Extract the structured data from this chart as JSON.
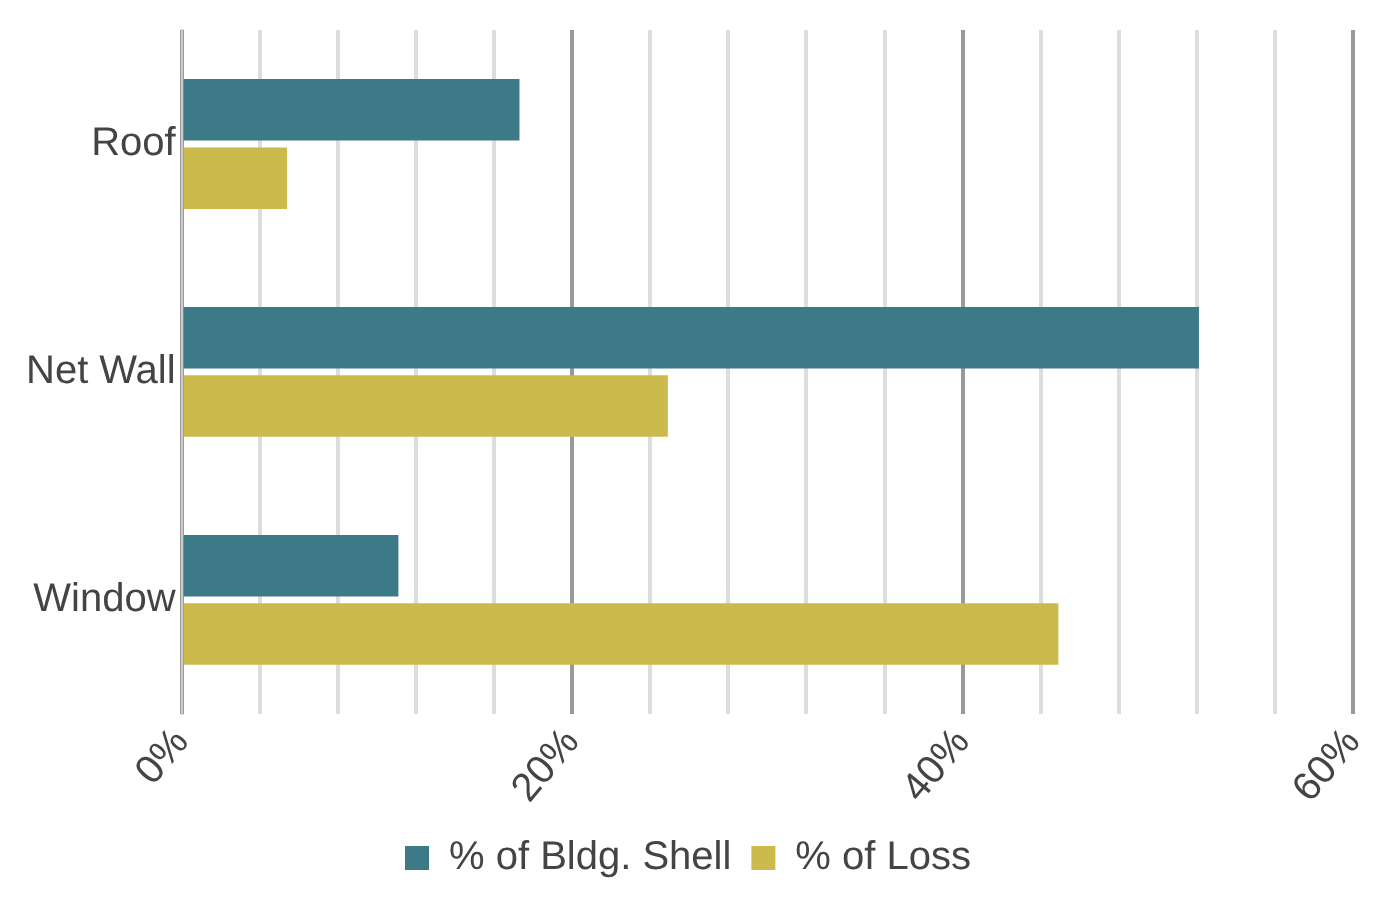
{
  "chart_data": {
    "type": "bar",
    "orientation": "horizontal",
    "categories": [
      "Roof",
      "Net Wall",
      "Window"
    ],
    "series": [
      {
        "name": "% of Bldg. Shell",
        "color": "#3d7a88",
        "values": [
          17.3,
          52.1,
          11.1
        ]
      },
      {
        "name": "% of Loss",
        "color": "#cbbb4c",
        "values": [
          5.4,
          24.9,
          44.9
        ]
      }
    ],
    "xlim": [
      0,
      60
    ],
    "xticks": [
      {
        "value": 0,
        "label": "0%"
      },
      {
        "value": 4,
        "label": null
      },
      {
        "value": 8,
        "label": null
      },
      {
        "value": 12,
        "label": null
      },
      {
        "value": 16,
        "label": null
      },
      {
        "value": 20,
        "label": "20%"
      },
      {
        "value": 24,
        "label": null
      },
      {
        "value": 28,
        "label": null
      },
      {
        "value": 32,
        "label": null
      },
      {
        "value": 36,
        "label": null
      },
      {
        "value": 40,
        "label": "40%"
      },
      {
        "value": 44,
        "label": null
      },
      {
        "value": 48,
        "label": null
      },
      {
        "value": 52,
        "label": null
      },
      {
        "value": 56,
        "label": null
      },
      {
        "value": 60,
        "label": "60%"
      }
    ],
    "grid": "x",
    "legend": "bottom"
  }
}
